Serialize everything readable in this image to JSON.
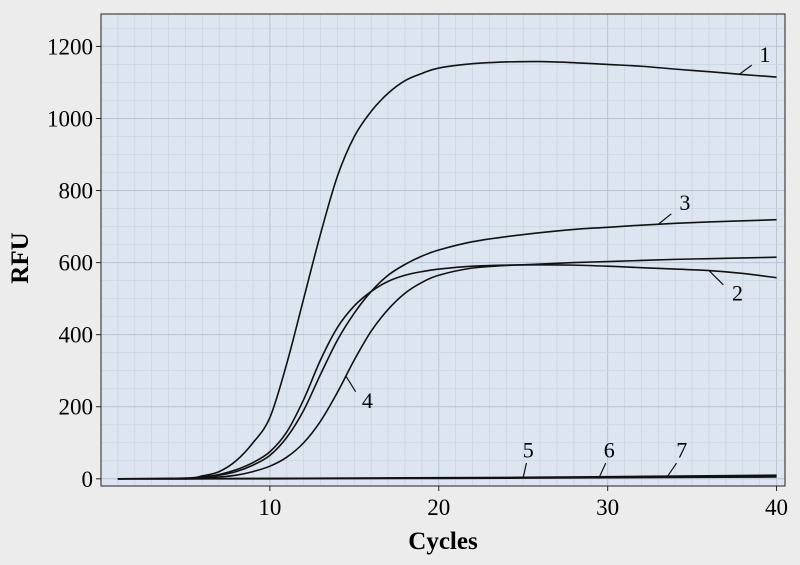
{
  "chart_data": {
    "type": "line",
    "title": "",
    "xlabel": "Cycles",
    "ylabel": "RFU",
    "xlim": [
      0,
      40.5
    ],
    "ylim": [
      -20,
      1290
    ],
    "xticks": [
      10,
      20,
      30,
      40
    ],
    "yticks": [
      0,
      200,
      400,
      600,
      800,
      1000,
      1200
    ],
    "grid": true,
    "background_color": "#dde5f0",
    "line_color": "#111111",
    "series": [
      {
        "name": "1",
        "x": [
          1,
          5,
          6,
          7,
          8,
          9,
          10,
          11,
          12,
          13,
          14,
          15,
          16,
          17,
          18,
          19,
          20,
          22,
          24,
          26,
          28,
          30,
          32,
          34,
          36,
          38,
          40
        ],
        "y": [
          0,
          2,
          8,
          20,
          50,
          100,
          170,
          320,
          500,
          680,
          840,
          950,
          1020,
          1070,
          1105,
          1125,
          1140,
          1152,
          1157,
          1158,
          1155,
          1150,
          1145,
          1137,
          1130,
          1122,
          1115
        ]
      },
      {
        "name": "2",
        "x": [
          1,
          5,
          6,
          7,
          8,
          9,
          10,
          11,
          12,
          13,
          14,
          15,
          16,
          17,
          18,
          19,
          20,
          22,
          24,
          26,
          28,
          30,
          32,
          34,
          36,
          38,
          40
        ],
        "y": [
          0,
          1,
          5,
          12,
          25,
          45,
          75,
          130,
          220,
          330,
          420,
          480,
          520,
          548,
          565,
          575,
          582,
          590,
          593,
          594,
          593,
          590,
          586,
          582,
          578,
          570,
          558
        ]
      },
      {
        "name": "3",
        "x": [
          1,
          5,
          6,
          7,
          8,
          9,
          10,
          11,
          12,
          13,
          14,
          15,
          16,
          17,
          18,
          19,
          20,
          22,
          24,
          26,
          28,
          30,
          32,
          34,
          36,
          38,
          40
        ],
        "y": [
          0,
          1,
          4,
          10,
          20,
          38,
          65,
          115,
          190,
          290,
          385,
          460,
          520,
          565,
          595,
          618,
          635,
          658,
          672,
          683,
          692,
          698,
          704,
          709,
          713,
          716,
          719
        ]
      },
      {
        "name": "4",
        "x": [
          1,
          5,
          6,
          7,
          8,
          9,
          10,
          11,
          12,
          13,
          14,
          15,
          16,
          17,
          18,
          19,
          20,
          22,
          24,
          26,
          28,
          30,
          32,
          34,
          36,
          38,
          40
        ],
        "y": [
          0,
          0,
          2,
          5,
          10,
          20,
          35,
          60,
          100,
          160,
          240,
          330,
          410,
          470,
          515,
          545,
          565,
          585,
          592,
          596,
          600,
          603,
          606,
          609,
          611,
          613,
          615
        ]
      },
      {
        "name": "5",
        "x": [
          1,
          5,
          10,
          15,
          20,
          25,
          30,
          35,
          40
        ],
        "y": [
          0,
          0,
          1,
          2,
          3,
          4,
          6,
          8,
          10
        ]
      },
      {
        "name": "6",
        "x": [
          1,
          5,
          10,
          15,
          20,
          25,
          30,
          35,
          40
        ],
        "y": [
          0,
          0,
          1,
          1,
          2,
          3,
          4,
          6,
          8
        ]
      },
      {
        "name": "7",
        "x": [
          1,
          5,
          10,
          15,
          20,
          25,
          30,
          35,
          40
        ],
        "y": [
          0,
          0,
          0,
          1,
          1,
          2,
          3,
          4,
          5
        ]
      }
    ],
    "annotations": [
      {
        "text": "1",
        "series": "1",
        "x_data": 37.8
      },
      {
        "text": "2",
        "series": "2",
        "x_data": 36
      },
      {
        "text": "3",
        "series": "3",
        "x_data": 33
      },
      {
        "text": "4",
        "series": "4",
        "x_data": 14.5
      },
      {
        "text": "5",
        "series": "5",
        "x_data": 25
      },
      {
        "text": "6",
        "series": "6",
        "x_data": 29.5
      },
      {
        "text": "7",
        "series": "7",
        "x_data": 33.5
      }
    ]
  }
}
